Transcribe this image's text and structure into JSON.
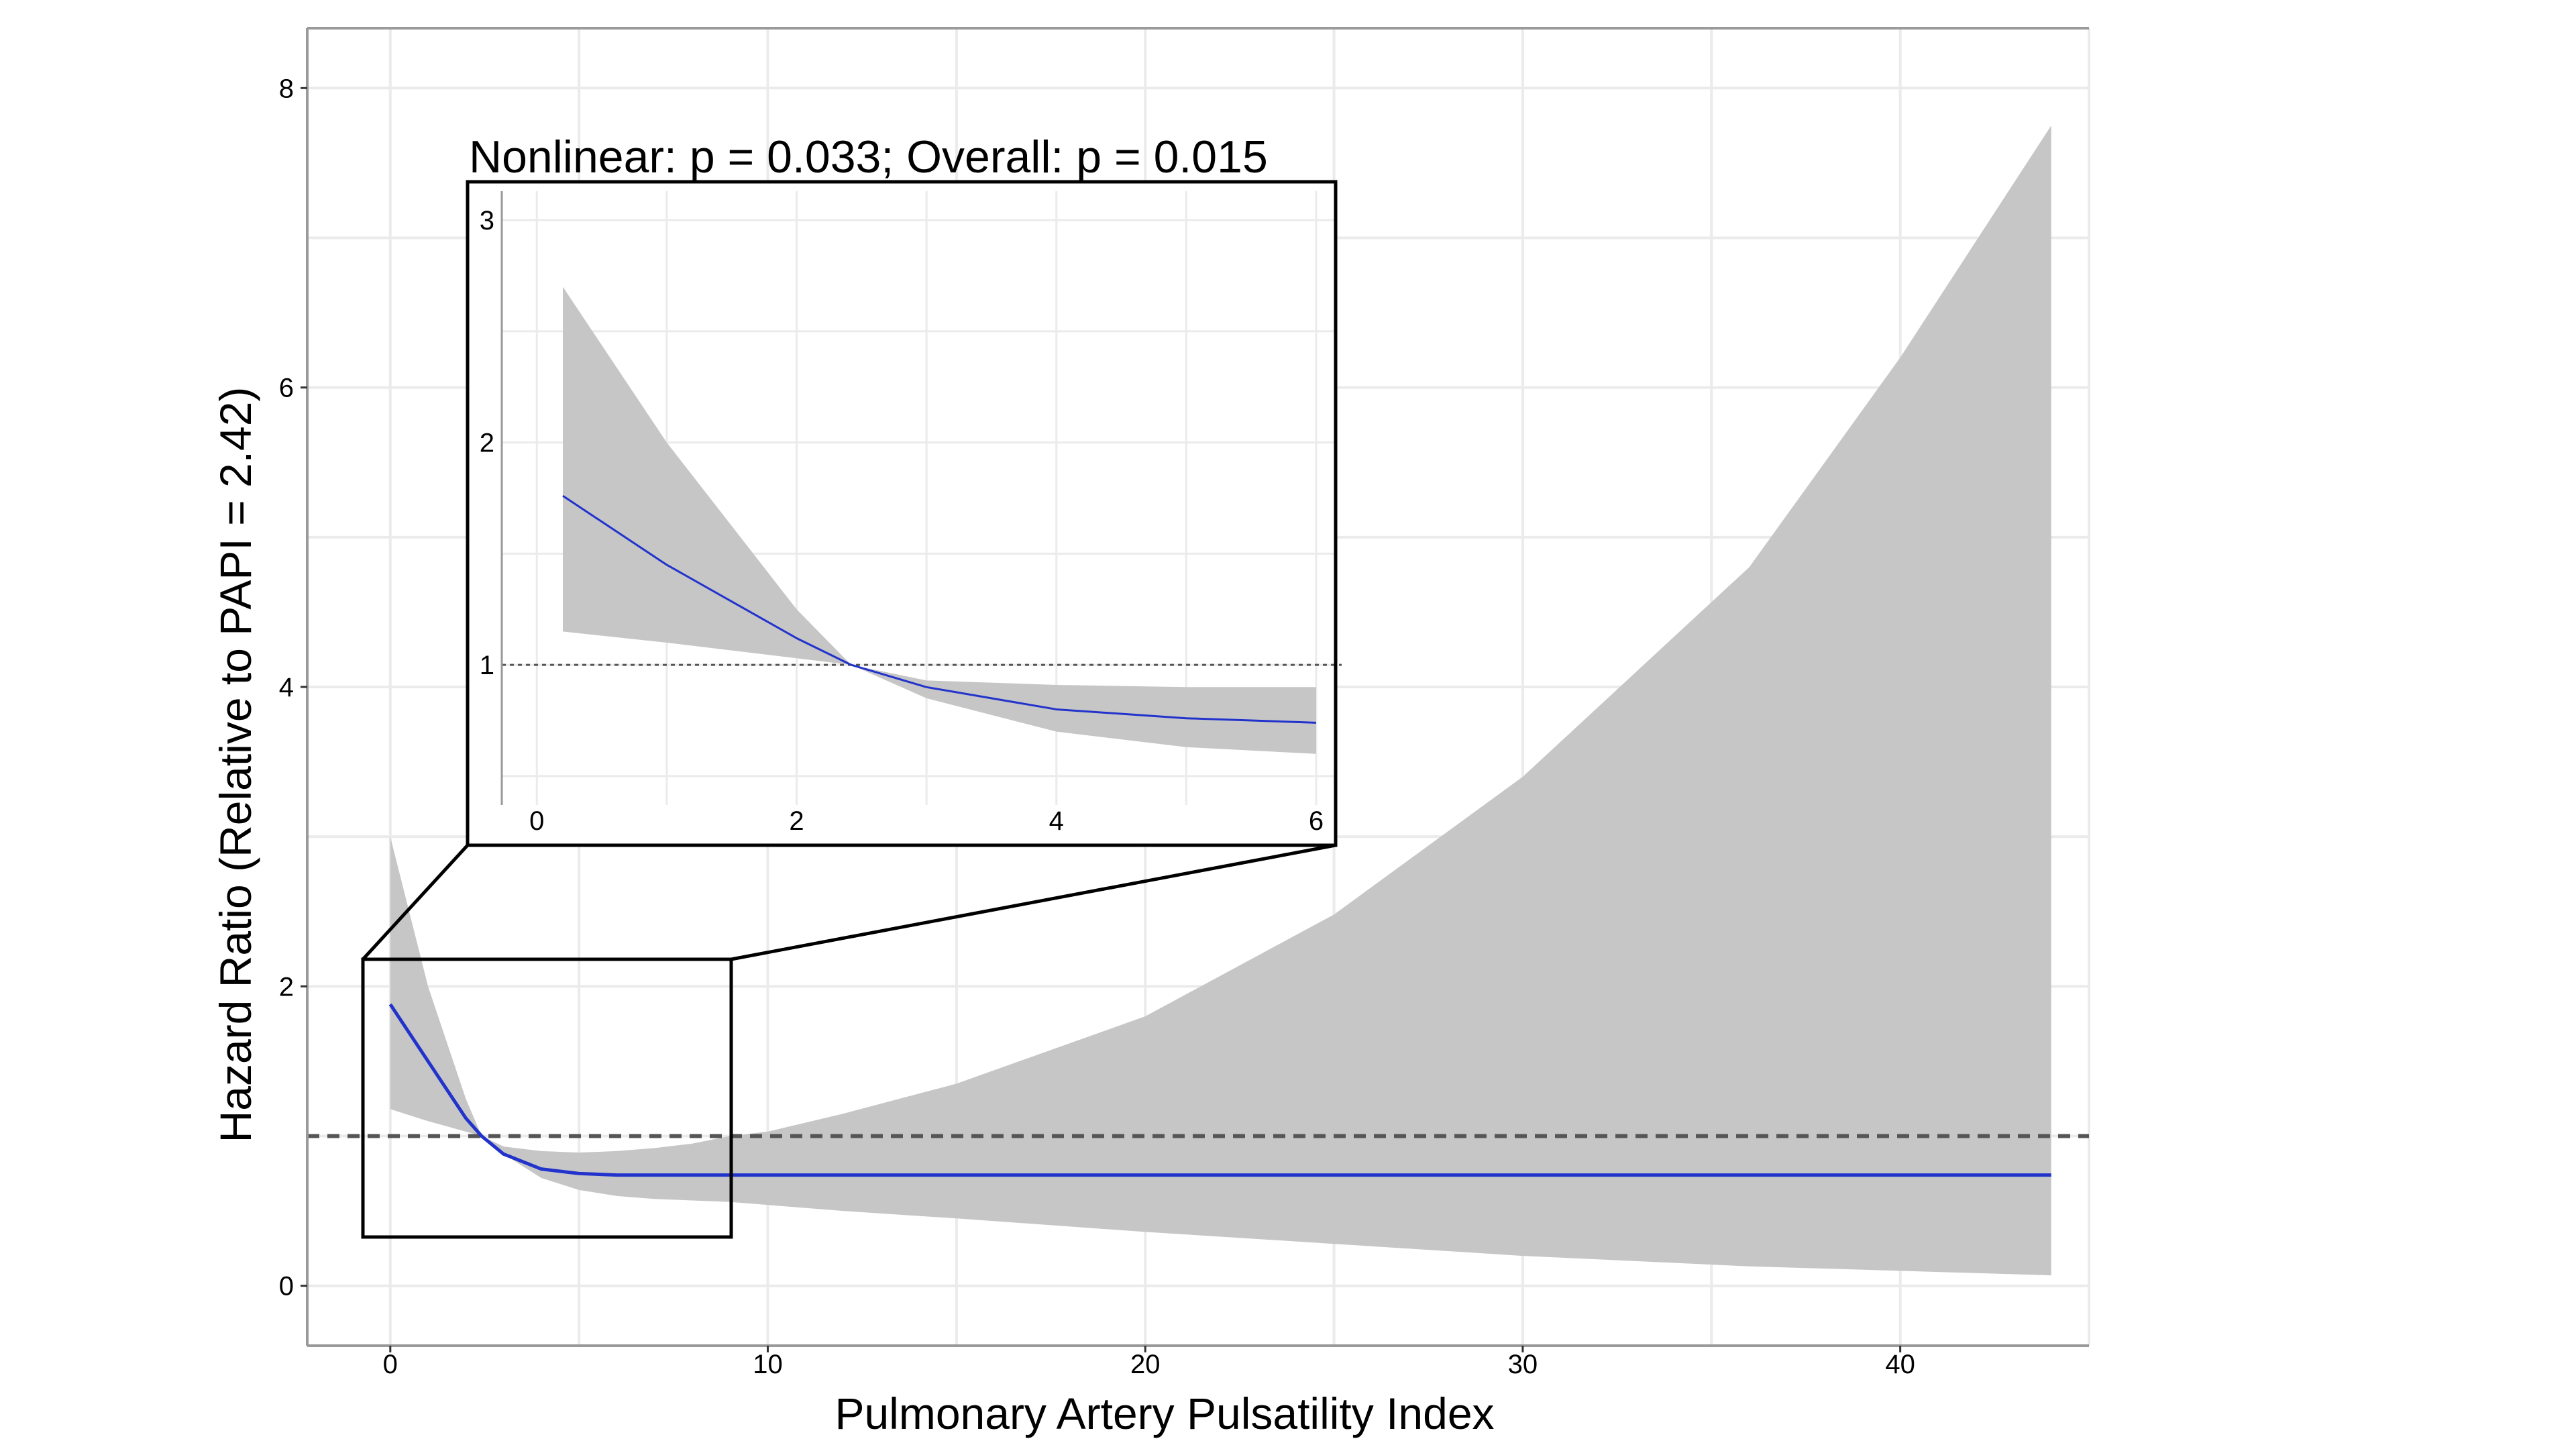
{
  "chart_data": [
    {
      "type": "line",
      "name": "main",
      "xlabel": "Pulmonary Artery Pulsatility Index",
      "ylabel": "Hazard Ratio (Relative to PAPI = 2.42)",
      "xlim": [
        -2.2,
        45
      ],
      "ylim": [
        -0.4,
        8.4
      ],
      "xticks": [
        0,
        10,
        20,
        30,
        40
      ],
      "xtick_labels": [
        "0",
        "10",
        "20",
        "30",
        "40"
      ],
      "yticks": [
        0,
        2,
        4,
        6,
        8
      ],
      "ytick_labels": [
        "0",
        "2",
        "4",
        "6",
        "8"
      ],
      "grid": true,
      "reference_line": 1,
      "x": [
        0,
        1,
        2,
        2.42,
        3,
        4,
        5,
        6,
        7,
        8,
        9,
        10,
        12,
        15,
        20,
        25,
        30,
        36,
        40,
        44
      ],
      "series": [
        {
          "name": "hazard_ratio",
          "color": "#2233cc",
          "values": [
            1.88,
            1.5,
            1.12,
            1.0,
            0.88,
            0.78,
            0.75,
            0.74,
            0.74,
            0.74,
            0.74,
            0.74,
            0.74,
            0.74,
            0.74,
            0.74,
            0.74,
            0.74,
            0.74,
            0.74
          ]
        },
        {
          "name": "ci_upper",
          "values": [
            3.0,
            2.0,
            1.25,
            1.0,
            0.93,
            0.9,
            0.89,
            0.9,
            0.92,
            0.95,
            1.0,
            1.03,
            1.15,
            1.35,
            1.8,
            2.48,
            3.4,
            4.8,
            6.2,
            7.75
          ]
        },
        {
          "name": "ci_lower",
          "values": [
            1.18,
            1.1,
            1.03,
            1.0,
            0.88,
            0.72,
            0.64,
            0.6,
            0.58,
            0.57,
            0.56,
            0.54,
            0.5,
            0.45,
            0.36,
            0.28,
            0.2,
            0.13,
            0.1,
            0.07
          ]
        }
      ],
      "zoom_region": {
        "x": [
          -0.75,
          9.0
        ],
        "y": [
          0.34,
          2.19
        ]
      }
    },
    {
      "type": "line",
      "name": "inset",
      "title": "Nonlinear: p = 0.033; Overall: p = 0.015",
      "xlim": [
        -0.27,
        6.15
      ],
      "ylim": [
        0.37,
        3.13
      ],
      "xticks": [
        0,
        2,
        4,
        6
      ],
      "xtick_labels": [
        "0",
        "2",
        "4",
        "6"
      ],
      "yticks": [
        1,
        2,
        3
      ],
      "ytick_labels": [
        "1",
        "2",
        "3"
      ],
      "grid": true,
      "reference_line": 1,
      "x": [
        0.2,
        1,
        2,
        2.42,
        3,
        4,
        5,
        6
      ],
      "series": [
        {
          "name": "hazard_ratio",
          "color": "#2233cc",
          "values": [
            1.76,
            1.45,
            1.12,
            1.0,
            0.9,
            0.8,
            0.76,
            0.74
          ]
        },
        {
          "name": "ci_upper",
          "values": [
            2.7,
            2.0,
            1.25,
            1.0,
            0.93,
            0.91,
            0.9,
            0.9
          ]
        },
        {
          "name": "ci_lower",
          "values": [
            1.15,
            1.1,
            1.03,
            1.0,
            0.85,
            0.7,
            0.63,
            0.6
          ]
        }
      ]
    }
  ],
  "colors": {
    "ci_band": "#c6c6c6",
    "line": "#2233cc",
    "grid": "#ebebeb",
    "ref": "#555555"
  }
}
